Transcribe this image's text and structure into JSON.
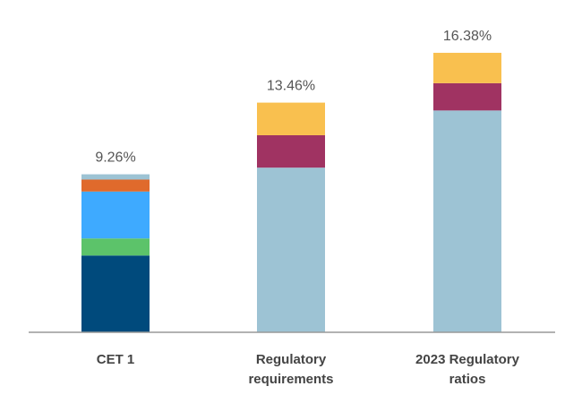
{
  "chart_data": {
    "type": "bar",
    "stacked": true,
    "categories": [
      "CET 1",
      "Regulatory requirements",
      "2023 Regulatory ratios"
    ],
    "category_lines": [
      [
        "CET 1"
      ],
      [
        "Regulatory",
        "requirements"
      ],
      [
        "2023 Regulatory",
        "ratios"
      ]
    ],
    "total_labels": [
      "9.26%",
      "13.46%",
      "16.38%"
    ],
    "totals": [
      9.26,
      13.46,
      16.38
    ],
    "series": [
      {
        "color": "#004a7c",
        "values": [
          4.5,
          0,
          0
        ]
      },
      {
        "color": "#5cc36a",
        "values": [
          1.0,
          0,
          0
        ]
      },
      {
        "color": "#3eaaff",
        "values": [
          2.75,
          0,
          0
        ]
      },
      {
        "color": "#e06a2c",
        "values": [
          0.7,
          0,
          0
        ]
      },
      {
        "color": "#9dc3d4",
        "values": [
          0.31,
          9.65,
          13.0
        ]
      },
      {
        "color": "#a03362",
        "values": [
          0,
          1.9,
          1.6
        ]
      },
      {
        "color": "#f9c04f",
        "values": [
          0,
          1.91,
          1.78
        ]
      }
    ],
    "ylim": [
      0,
      17.5
    ],
    "grid": false,
    "legend": "none",
    "axis_color": "#999999"
  }
}
